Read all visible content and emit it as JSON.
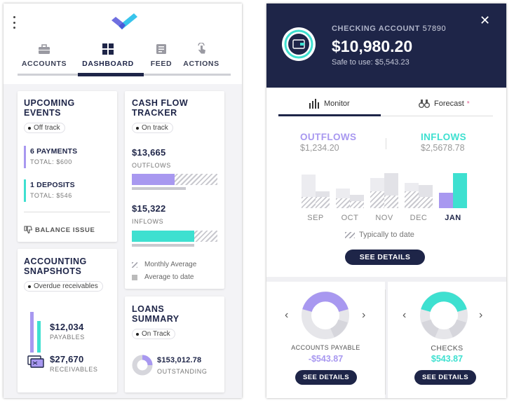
{
  "left": {
    "tabs": [
      {
        "label": "ACCOUNTS",
        "icon": "briefcase-icon"
      },
      {
        "label": "DASHBOARD",
        "icon": "dashboard-icon",
        "active": true
      },
      {
        "label": "FEED",
        "icon": "feed-icon"
      },
      {
        "label": "ACTIONS",
        "icon": "hand-tap-icon"
      }
    ],
    "upcoming": {
      "title_1": "UPCOMING",
      "title_2": "EVENTS",
      "status": "Off track",
      "payments": {
        "label": "6 PAYMENTS",
        "total": "TOTAL: $600",
        "color": "#a898f0"
      },
      "deposits": {
        "label": "1 DEPOSITS",
        "total": "TOTAL: $546",
        "color": "#3ee0d0"
      },
      "issue": "BALANCE ISSUE"
    },
    "cashflow": {
      "title_1": "CASH FLOW",
      "title_2": "TRACKER",
      "status": "On track",
      "outflows_value": "$13,665",
      "outflows_label": "OUTFLOWS",
      "inflows_value": "$15,322",
      "inflows_label": "INFLOWS",
      "legend_monthly": "Monthly Average",
      "legend_todate": "Average to date",
      "outflow_fraction": 0.5,
      "inflow_fraction": 0.73
    },
    "snapshots": {
      "title_1": "ACCOUNTING",
      "title_2": "SNAPSHOTS",
      "status": "Overdue receivables",
      "payables_value": "$12,034",
      "payables_label": "PAYABLES",
      "receivables_value": "$27,670",
      "receivables_label": "RECEIVABLES"
    },
    "loans": {
      "title_1": "LOANS",
      "title_2": "SUMMARY",
      "status": "On Track",
      "value": "$153,012.78",
      "label": "OUTSTANDING"
    }
  },
  "right": {
    "account_label": "CHECKING ACCOUNT",
    "account_number": "57890",
    "balance": "$10,980.20",
    "safe_to_use": "Safe to use: $5,543.23",
    "tabs": {
      "monitor": "Monitor",
      "forecast": "Forecast"
    },
    "outflows": {
      "label": "OUTFLOWS",
      "value": "$1,234.20"
    },
    "inflows": {
      "label": "INFLOWS",
      "value": "$2,5678.78"
    },
    "months": [
      "SEP",
      "OCT",
      "NOV",
      "DEC",
      "JAN"
    ],
    "legend": "Typically to date",
    "see_details": "SEE DETAILS",
    "payable": {
      "label": "ACCOUNTS PAYABLE",
      "value": "-$543.87"
    },
    "checks": {
      "label": "CHECKS",
      "value": "$543.87"
    },
    "colors": {
      "purple": "#a898f0",
      "teal": "#3ee0d0",
      "navy": "#1e2548"
    }
  }
}
